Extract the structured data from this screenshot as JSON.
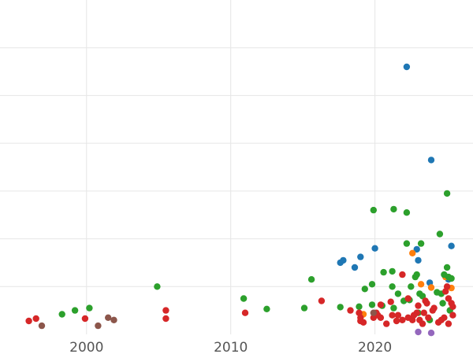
{
  "chart_data": {
    "type": "scatter",
    "title": "",
    "xlabel": "",
    "ylabel": "",
    "x_ticks": [
      "2000",
      "2010",
      "2020"
    ],
    "x_tick_values": [
      2000,
      2010,
      2020
    ],
    "xlim": [
      1994,
      2026.8
    ],
    "ylim": [
      0,
      7
    ],
    "y_gridlines": [
      1,
      2,
      3,
      4,
      5,
      6
    ],
    "grid": true,
    "legend": "none",
    "series": [
      {
        "color": "#1f77b4",
        "points": [
          [
            2022.2,
            5.6
          ],
          [
            2023.9,
            3.65
          ],
          [
            2025.3,
            1.85
          ],
          [
            2022.9,
            1.78
          ],
          [
            2020.0,
            1.8
          ],
          [
            2023.0,
            1.55
          ],
          [
            2017.6,
            1.5
          ],
          [
            2017.8,
            1.55
          ],
          [
            2019.0,
            1.62
          ],
          [
            2018.6,
            1.4
          ],
          [
            2025.1,
            1.15
          ],
          [
            2023.8,
            1.08
          ]
        ]
      },
      {
        "color": "#ff7f0e",
        "points": [
          [
            2022.6,
            1.7
          ],
          [
            2023.2,
            1.05
          ],
          [
            2023.9,
            0.98
          ],
          [
            2025.3,
            0.97
          ],
          [
            2024.9,
            1.2
          ],
          [
            2019.2,
            0.42
          ]
        ]
      },
      {
        "color": "#2ca02c",
        "points": [
          [
            1999.2,
            0.5
          ],
          [
            1998.3,
            0.42
          ],
          [
            2000.2,
            0.55
          ],
          [
            2004.9,
            1.0
          ],
          [
            2010.9,
            0.75
          ],
          [
            2012.5,
            0.53
          ],
          [
            2015.1,
            0.55
          ],
          [
            2015.6,
            1.15
          ],
          [
            2019.9,
            2.6
          ],
          [
            2021.3,
            2.62
          ],
          [
            2022.2,
            2.55
          ],
          [
            2025.0,
            2.95
          ],
          [
            2024.5,
            2.1
          ],
          [
            2022.2,
            1.9
          ],
          [
            2023.2,
            1.9
          ],
          [
            2020.6,
            1.3
          ],
          [
            2021.2,
            1.32
          ],
          [
            2022.9,
            1.25
          ],
          [
            2022.8,
            1.2
          ],
          [
            2019.8,
            1.05
          ],
          [
            2021.2,
            1.0
          ],
          [
            2022.5,
            1.0
          ],
          [
            2019.3,
            0.95
          ],
          [
            2021.6,
            0.85
          ],
          [
            2023.1,
            0.85
          ],
          [
            2023.3,
            0.8
          ],
          [
            2024.3,
            0.88
          ],
          [
            2024.6,
            0.85
          ],
          [
            2025.0,
            1.4
          ],
          [
            2024.8,
            1.25
          ],
          [
            2025.1,
            1.2
          ],
          [
            2025.3,
            1.17
          ],
          [
            2017.6,
            0.57
          ],
          [
            2018.9,
            0.58
          ],
          [
            2019.8,
            0.62
          ],
          [
            2020.5,
            0.6
          ],
          [
            2021.3,
            0.55
          ],
          [
            2022.0,
            0.7
          ],
          [
            2022.4,
            0.72
          ],
          [
            2024.7,
            0.65
          ],
          [
            2025.2,
            0.5
          ],
          [
            2023.0,
            0.45
          ],
          [
            2023.8,
            0.3
          ]
        ]
      },
      {
        "color": "#d62728",
        "points": [
          [
            1996.0,
            0.28
          ],
          [
            1996.5,
            0.33
          ],
          [
            1999.9,
            0.33
          ],
          [
            2005.5,
            0.5
          ],
          [
            2005.5,
            0.33
          ],
          [
            2011.0,
            0.45
          ],
          [
            2016.3,
            0.7
          ],
          [
            2018.3,
            0.5
          ],
          [
            2018.9,
            0.45
          ],
          [
            2019.0,
            0.35
          ],
          [
            2019.2,
            0.25
          ],
          [
            2019.9,
            0.35
          ],
          [
            2020.2,
            0.4
          ],
          [
            2020.4,
            0.35
          ],
          [
            2020.8,
            0.22
          ],
          [
            2021.2,
            0.4
          ],
          [
            2021.6,
            0.4
          ],
          [
            2021.9,
            0.3
          ],
          [
            2022.3,
            0.35
          ],
          [
            2022.6,
            0.3
          ],
          [
            2022.9,
            0.45
          ],
          [
            2023.1,
            0.3
          ],
          [
            2023.4,
            0.45
          ],
          [
            2023.7,
            0.35
          ],
          [
            2024.0,
            0.5
          ],
          [
            2024.4,
            0.25
          ],
          [
            2024.8,
            0.35
          ],
          [
            2025.1,
            0.22
          ],
          [
            2025.4,
            0.4
          ],
          [
            2024.9,
            0.9
          ],
          [
            2025.1,
            0.75
          ],
          [
            2025.3,
            0.65
          ],
          [
            2025.4,
            0.58
          ],
          [
            2023.5,
            0.7
          ],
          [
            2022.3,
            0.75
          ],
          [
            2021.1,
            0.68
          ],
          [
            2020.4,
            0.62
          ],
          [
            2021.9,
            1.25
          ],
          [
            2023.0,
            0.6
          ],
          [
            2023.6,
            0.65
          ],
          [
            2024.1,
            0.55
          ],
          [
            2025.0,
            1.0
          ],
          [
            2019.0,
            0.28
          ],
          [
            2020.1,
            0.45
          ],
          [
            2022.7,
            0.4
          ],
          [
            2024.6,
            0.3
          ],
          [
            2021.5,
            0.28
          ],
          [
            2023.3,
            0.22
          ]
        ]
      },
      {
        "color": "#9467bd",
        "points": [
          [
            2023.0,
            0.05
          ],
          [
            2023.9,
            0.03
          ]
        ]
      },
      {
        "color": "#8c564b",
        "points": [
          [
            1996.9,
            0.18
          ],
          [
            2000.8,
            0.18
          ],
          [
            2001.5,
            0.35
          ],
          [
            2001.9,
            0.3
          ],
          [
            2019.9,
            0.45
          ]
        ]
      }
    ]
  }
}
